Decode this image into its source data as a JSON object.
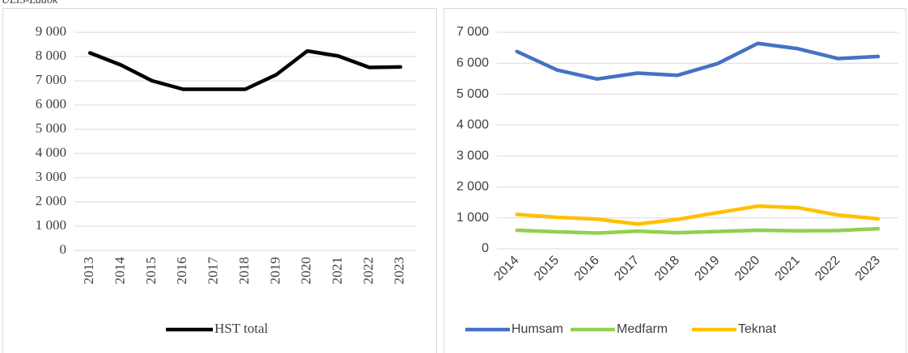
{
  "source_note": "ULIS-Ladok",
  "chart_data": [
    {
      "type": "line",
      "categories": [
        "2013",
        "2014",
        "2015",
        "2016",
        "2017",
        "2018",
        "2019",
        "2020",
        "2021",
        "2022",
        "2023"
      ],
      "series": [
        {
          "name": "HST total",
          "color": "#000000",
          "values": [
            8150,
            7650,
            7000,
            6650,
            6650,
            6650,
            7250,
            8230,
            8020,
            7550,
            7570
          ]
        }
      ],
      "ylim": [
        0,
        9000
      ],
      "yticks": [
        0,
        {
          "value": 1000,
          "label": "1 000"
        },
        {
          "value": 2000,
          "label": "2 000"
        },
        {
          "value": 3000,
          "label": "3 000"
        },
        {
          "value": 4000,
          "label": "4 000"
        },
        {
          "value": 5000,
          "label": "5 000"
        },
        {
          "value": 6000,
          "label": "6 000"
        },
        {
          "value": 7000,
          "label": "7 000"
        },
        {
          "value": 8000,
          "label": "8 000"
        },
        {
          "value": 9000,
          "label": "9 000"
        }
      ],
      "grid": true,
      "legend": "bottom"
    },
    {
      "type": "line",
      "categories": [
        "2014",
        "2015",
        "2016",
        "2017",
        "2018",
        "2019",
        "2020",
        "2021",
        "2022",
        "2023"
      ],
      "series": [
        {
          "name": "Humsam",
          "color": "#4472c4",
          "values": [
            6380,
            5780,
            5490,
            5680,
            5610,
            5990,
            6640,
            6470,
            6150,
            6220
          ]
        },
        {
          "name": "Medfarm",
          "color": "#92d050",
          "values": [
            600,
            550,
            510,
            570,
            520,
            560,
            600,
            580,
            590,
            650
          ]
        },
        {
          "name": "Teknat",
          "color": "#ffc000",
          "values": [
            1110,
            1020,
            960,
            800,
            950,
            1170,
            1380,
            1330,
            1090,
            970
          ]
        }
      ],
      "ylim": [
        0,
        7000
      ],
      "yticks": [
        0,
        {
          "value": 1000,
          "label": "1 000"
        },
        {
          "value": 2000,
          "label": "2 000"
        },
        {
          "value": 3000,
          "label": "3 000"
        },
        {
          "value": 4000,
          "label": "4 000"
        },
        {
          "value": 5000,
          "label": "5 000"
        },
        {
          "value": 6000,
          "label": "6 000"
        },
        {
          "value": 7000,
          "label": "7 000"
        }
      ],
      "grid": true,
      "legend": "bottom"
    }
  ]
}
